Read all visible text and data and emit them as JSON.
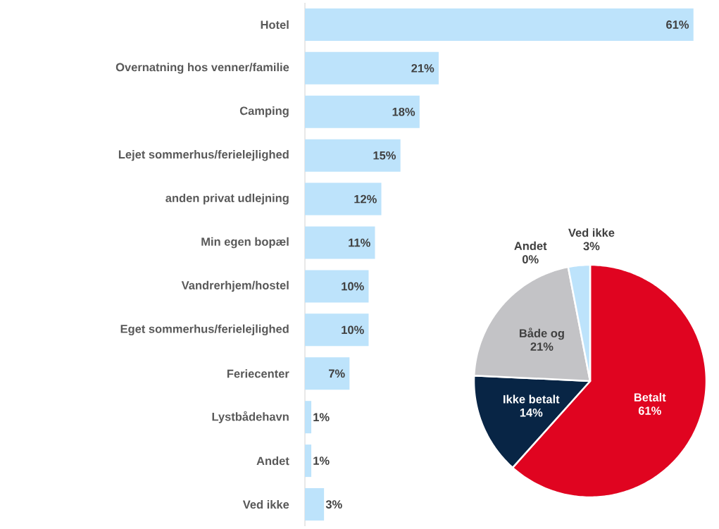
{
  "chart_data": [
    {
      "type": "bar",
      "orientation": "horizontal",
      "categories": [
        "Hotel",
        "Overnatning hos venner/familie",
        "Camping",
        "Lejet sommerhus/ferielejlighed",
        "anden privat udlejning",
        "Min egen bopæl",
        "Vandrerhjem/hostel",
        "Eget sommerhus/ferielejlighed",
        "Feriecenter",
        "Lystbådehavn",
        "Andet",
        "Ved ikke"
      ],
      "values": [
        61,
        21,
        18,
        15,
        12,
        11,
        10,
        10,
        7,
        1,
        1,
        3
      ],
      "value_labels": [
        "61%",
        "21%",
        "18%",
        "15%",
        "12%",
        "11%",
        "10%",
        "10%",
        "7%",
        "1%",
        "1%",
        "3%"
      ],
      "color": "#bde3fb",
      "tick_labels": "y"
    },
    {
      "type": "pie",
      "categories": [
        "Betalt",
        "Ikke betalt",
        "Både og",
        "Andet",
        "Ved ikke"
      ],
      "values": [
        61,
        14,
        21,
        0,
        3
      ],
      "value_labels": [
        "61%",
        "14%",
        "21%",
        "0%",
        "3%"
      ],
      "colors": [
        "#e00420",
        "#082545",
        "#c3c3c6",
        "#d9d9d9",
        "#bde3fb"
      ]
    }
  ]
}
